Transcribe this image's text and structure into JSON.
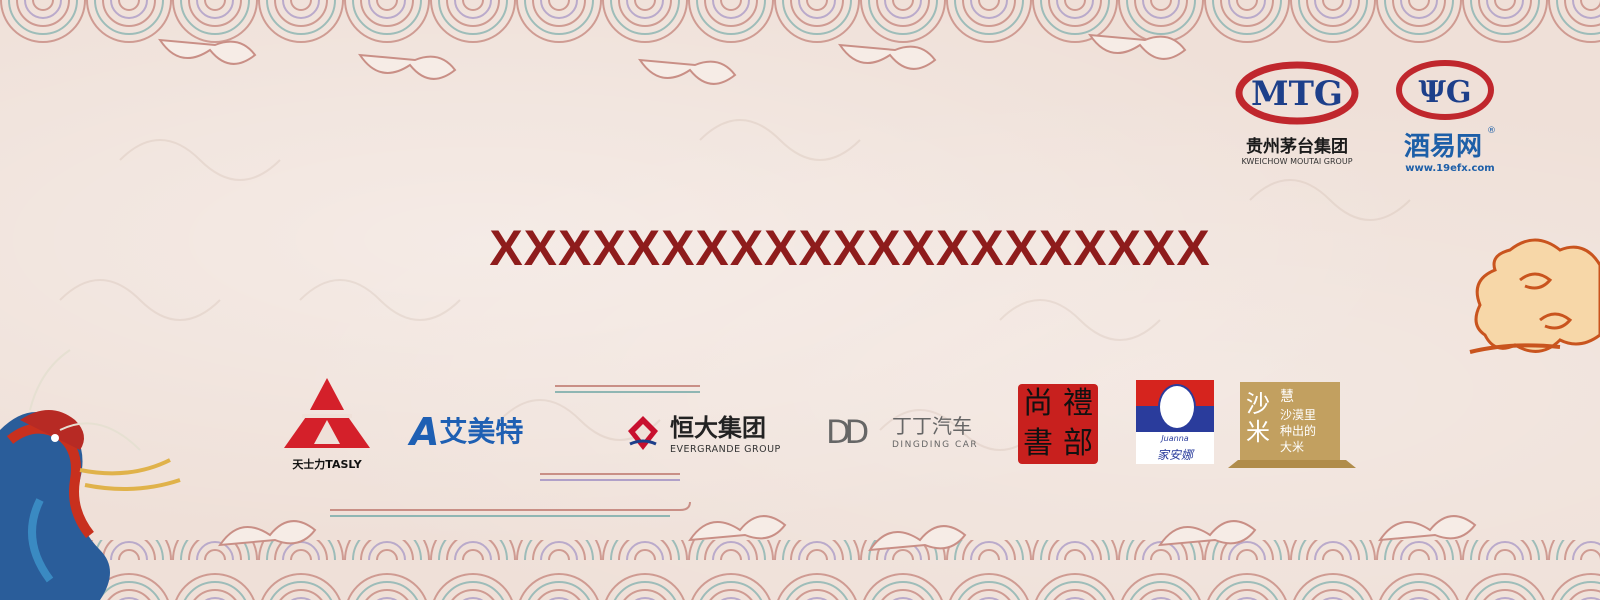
{
  "banner": {
    "title": "XXXXXXXXXXXXXXXXXXXXX"
  },
  "top_logos": {
    "moutai": {
      "name": "贵州茅台集团",
      "sub": "KWEICHOW MOUTAI GROUP"
    },
    "jiuyi": {
      "name": "酒易网",
      "reg": "®",
      "url": "www.19efx.com"
    }
  },
  "sponsors": {
    "tasly": {
      "text": "天士力TASLY"
    },
    "aimeite": {
      "text": "艾美特",
      "mark": "A"
    },
    "evergrande": {
      "name": "恒大集团",
      "sub": "EVERGRANDE GROUP"
    },
    "dingding": {
      "name": "丁丁汽车",
      "sub": "DINGDING CAR",
      "mark": "DD"
    },
    "libu": {
      "c1": "禮",
      "c2": "部",
      "c3": "尚",
      "c4": "書"
    },
    "juanna": {
      "text": "Juanna",
      "script": "家安娜"
    },
    "shami": {
      "big": "沙米",
      "seal": "慧",
      "line1": "沙漠里",
      "line2": "种出的",
      "line3": "大米"
    }
  },
  "colors": {
    "background": "#efe0d8",
    "title": "#8e1c1c",
    "moutai_red": "#c0272d",
    "jiuyi_blue": "#1d5fa8",
    "tasly_red": "#d4202a",
    "aimeite_blue": "#1e5fb3",
    "evergrande_red": "#c8102e",
    "libu_red": "#c8201e",
    "shami_gold": "#c2a060"
  }
}
